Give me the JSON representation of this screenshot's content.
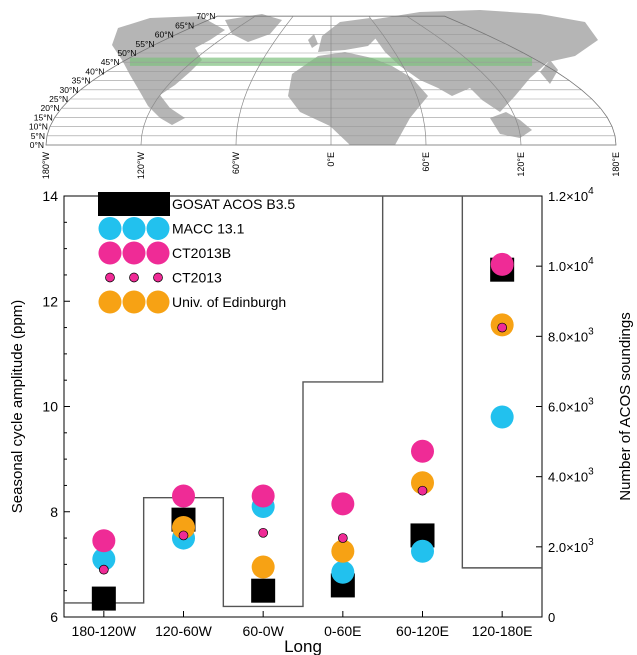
{
  "map": {
    "lat_labels": [
      "0°N",
      "5°N",
      "10°N",
      "15°N",
      "20°N",
      "25°N",
      "30°N",
      "35°N",
      "40°N",
      "45°N",
      "50°N",
      "55°N",
      "60°N",
      "65°N",
      "70°N"
    ],
    "lon_labels": [
      "180°W",
      "120°W",
      "60°W",
      "0°E",
      "60°E",
      "120°E",
      "180°E"
    ],
    "band_color": "#7ec07e",
    "land_color": "#b5b5b5"
  },
  "chart_data": {
    "type": "scatter",
    "xlabel": "Long",
    "ylabel": "Seasonal cycle amplitude (ppm)",
    "y2label": "Number of ACOS soundings",
    "categories": [
      "180-120W",
      "120-60W",
      "60-0W",
      "0-60E",
      "60-120E",
      "120-180E"
    ],
    "ylim": [
      6,
      14
    ],
    "yticks": [
      "6",
      "8",
      "10",
      "12",
      "14"
    ],
    "y2lim": [
      0,
      12000
    ],
    "y2ticks": [
      {
        "value": 0,
        "mant": "0",
        "exp": ""
      },
      {
        "value": 2000,
        "mant": "2.0×10",
        "exp": "3"
      },
      {
        "value": 4000,
        "mant": "4.0×10",
        "exp": "3"
      },
      {
        "value": 6000,
        "mant": "6.0×10",
        "exp": "3"
      },
      {
        "value": 8000,
        "mant": "8.0×10",
        "exp": "3"
      },
      {
        "value": 10000,
        "mant": "1.0×10",
        "exp": "4"
      },
      {
        "value": 12000,
        "mant": "1.2×10",
        "exp": "4"
      }
    ],
    "grid": false,
    "legend_position": "top-left",
    "series": [
      {
        "name": "GOSAT ACOS B3.5",
        "marker": "square",
        "color": "#000000",
        "values": [
          6.35,
          7.85,
          6.5,
          6.6,
          7.55,
          12.6
        ]
      },
      {
        "name": "MACC 13.1",
        "marker": "circle",
        "color": "#22c1ee",
        "values": [
          7.1,
          7.5,
          8.1,
          6.85,
          7.25,
          9.8
        ]
      },
      {
        "name": "CT2013B",
        "marker": "circle",
        "color": "#ef2b96",
        "values": [
          7.45,
          8.3,
          8.3,
          8.15,
          9.15,
          12.7
        ]
      },
      {
        "name": "CT2013",
        "marker": "dot",
        "color": "#ef2b96",
        "values": [
          6.9,
          7.55,
          7.6,
          7.5,
          8.4,
          11.5
        ]
      },
      {
        "name": "Univ. of Edinburgh",
        "marker": "circle",
        "color": "#f7a214",
        "values": [
          null,
          7.7,
          6.95,
          7.25,
          8.55,
          11.55
        ]
      }
    ],
    "soundings": [
      400,
      3400,
      300,
      6700,
      13000,
      1400
    ]
  }
}
